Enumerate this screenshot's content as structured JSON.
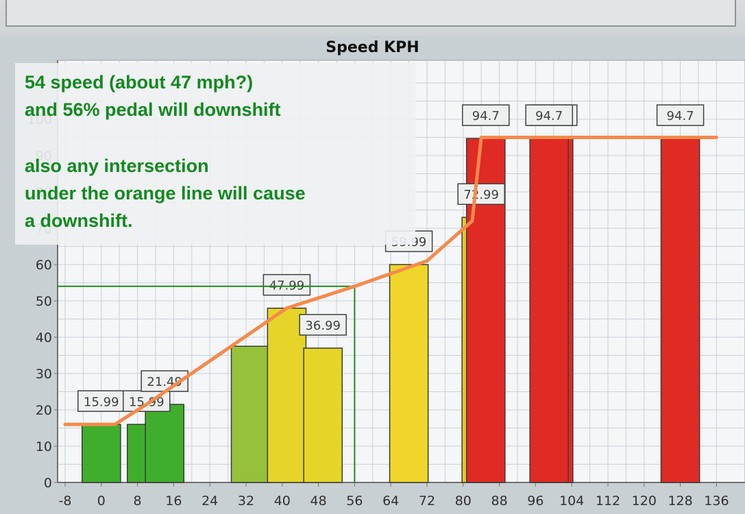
{
  "chart_data": {
    "type": "bar",
    "title": "Speed KPH",
    "xlabel": "",
    "ylabel": "",
    "x_ticks": [
      "-8",
      "0",
      "8",
      "16",
      "24",
      "32",
      "40",
      "48",
      "56",
      "64",
      "72",
      "80",
      "88",
      "96",
      "104",
      "112",
      "120",
      "128",
      "136"
    ],
    "y_ticks": [
      "0",
      "10",
      "20",
      "30",
      "40",
      "50",
      "60",
      "70",
      "80",
      "90",
      "100"
    ],
    "xlim": [
      -8,
      136
    ],
    "ylim": [
      0,
      110
    ],
    "grid": true,
    "bars": [
      {
        "x": 0,
        "value": 15.99,
        "label": "15.99",
        "color": "#3fae2c"
      },
      {
        "x": 10,
        "value": 15.99,
        "label": "15.99",
        "color": "#3fae2c"
      },
      {
        "x": 14,
        "value": 21.49,
        "label": "21.49",
        "color": "#3fae2c"
      },
      {
        "x": 33,
        "value": 37.5,
        "label": "",
        "color": "#96c23a"
      },
      {
        "x": 41,
        "value": 47.99,
        "label": "47.99",
        "color": "#e6d528"
      },
      {
        "x": 49,
        "value": 36.99,
        "label": "36.99",
        "color": "#e6d528"
      },
      {
        "x": 68,
        "value": 59.99,
        "label": "59.99",
        "color": "#f0d52a"
      },
      {
        "x": 84,
        "value": 72.99,
        "label": "72.99",
        "color": "#e4c72a"
      },
      {
        "x": 85,
        "value": 94.7,
        "label": "94.7",
        "color": "#e02a24"
      },
      {
        "x": 100,
        "value": 94.7,
        "label": "94.7",
        "color": "#e02a24"
      },
      {
        "x": 99,
        "value": 94.7,
        "label": "94.7",
        "color": "#e02a24"
      },
      {
        "x": 128,
        "value": 94.7,
        "label": "94.7",
        "color": "#e02a24"
      }
    ],
    "orange_line": {
      "color": "#f58a4b",
      "points": [
        [
          -8,
          16
        ],
        [
          3,
          16
        ],
        [
          10,
          21.5
        ],
        [
          41,
          48
        ],
        [
          56,
          54
        ],
        [
          72,
          61
        ],
        [
          82,
          72
        ],
        [
          84,
          95
        ],
        [
          136,
          95
        ]
      ]
    },
    "guide_line": {
      "color": "#1e8a1e",
      "x": 56,
      "y": 54
    },
    "annotation": {
      "color": "#13891f",
      "lines": [
        "54 speed (about 47 mph?)",
        "and 56% pedal will downshift",
        "",
        "also any intersection",
        "under the orange line will cause",
        "a downshift."
      ]
    }
  }
}
